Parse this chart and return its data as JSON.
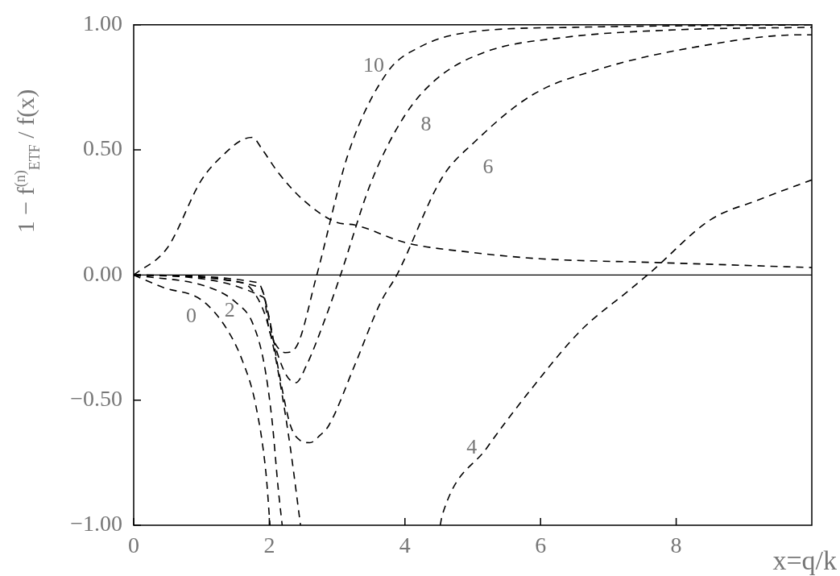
{
  "chart_data": {
    "type": "line",
    "xlabel": "x=q/k",
    "ylabel": "1 − f$^{(n)}$$_{ETF}$ / f(x)",
    "xlim": [
      0,
      10
    ],
    "ylim": [
      -1,
      1
    ],
    "xticks": [
      0,
      2,
      4,
      6,
      8
    ],
    "yticks": [
      {
        "value": -1,
        "label": "−1.00"
      },
      {
        "value": -0.5,
        "label": "−0.50"
      },
      {
        "value": 0,
        "label": "0.00"
      },
      {
        "value": 0.5,
        "label": "0.50"
      },
      {
        "value": 1,
        "label": "1.00"
      }
    ],
    "grid": false,
    "legend": false,
    "marker": "none",
    "line_style": "dashed",
    "ref_lines": [
      {
        "axis": "y",
        "value": 0,
        "line_style": "solid",
        "color": "#000000"
      }
    ],
    "series": [
      {
        "color": "#000000",
        "x": [
          0,
          0.5,
          1,
          1.36,
          1.6,
          1.75,
          1.9,
          2.13,
          2.5,
          3,
          3.26,
          4,
          5,
          6,
          7.7,
          10
        ],
        "values": [
          0,
          0.11,
          0.38,
          0.49,
          0.54,
          0.55,
          0.5,
          0.41,
          0.3,
          0.21,
          0.2,
          0.13,
          0.09,
          0.065,
          0.05,
          0.03
        ]
      },
      {
        "name": "0",
        "color": "#000000",
        "x": [
          0,
          0.44,
          1,
          1.36,
          1.6,
          1.8,
          1.95,
          2.01
        ],
        "values": [
          0,
          -0.05,
          -0.1,
          -0.21,
          -0.34,
          -0.52,
          -0.79,
          -1
        ]
      },
      {
        "name": "2",
        "color": "#000000",
        "x": [
          0,
          1.12,
          1.51,
          1.75,
          1.92,
          2.04,
          2.13,
          2.19
        ],
        "values": [
          0,
          -0.05,
          -0.11,
          -0.19,
          -0.35,
          -0.58,
          -0.85,
          -1
        ]
      },
      {
        "name": "4",
        "color": "#000000",
        "x": [
          0,
          1.6,
          1.8,
          1.95,
          2.07,
          2.19,
          2.31,
          2.46,
          3.5,
          4.52,
          4.55,
          5.21,
          5.88,
          6.6,
          7.31,
          7.62,
          8.5,
          9.21,
          10
        ],
        "values": [
          0,
          -0.03,
          -0.08,
          -0.17,
          -0.3,
          -0.48,
          -0.69,
          -1,
          null,
          -1,
          -0.96,
          -0.69,
          -0.45,
          -0.22,
          -0.06,
          0.01,
          0.22,
          0.3,
          0.38
        ]
      },
      {
        "name": "6",
        "color": "#000000",
        "x": [
          0,
          1.83,
          1.99,
          2.15,
          2.31,
          2.45,
          2.6,
          2.75,
          2.88,
          3.26,
          3.64,
          3.88,
          4.55,
          5.02,
          5.88,
          6.83,
          8.26,
          9.83,
          10
        ],
        "values": [
          0,
          -0.03,
          -0.16,
          -0.4,
          -0.6,
          -0.66,
          -0.67,
          -0.64,
          -0.6,
          -0.36,
          -0.11,
          0,
          0.39,
          0.53,
          0.72,
          0.82,
          0.91,
          0.96,
          0.96
        ]
      },
      {
        "name": "8",
        "color": "#000000",
        "x": [
          0,
          1.87,
          2.07,
          2.25,
          2.39,
          2.55,
          2.83,
          3.05,
          3.5,
          3.98,
          4.45,
          5.17,
          6.36,
          8,
          10
        ],
        "values": [
          0,
          -0.05,
          -0.27,
          -0.4,
          -0.43,
          -0.36,
          -0.17,
          0,
          0.37,
          0.63,
          0.78,
          0.89,
          0.95,
          0.98,
          0.99
        ]
      },
      {
        "name": "10",
        "color": "#000000",
        "x": [
          0,
          1.92,
          1.99,
          2.1,
          2.23,
          2.39,
          2.7,
          3.17,
          3.74,
          4.21,
          4.93,
          6.5,
          10
        ],
        "values": [
          0,
          -0.09,
          -0.21,
          -0.28,
          -0.31,
          -0.29,
          0,
          0.49,
          0.81,
          0.91,
          0.97,
          0.99,
          1
        ]
      }
    ]
  }
}
